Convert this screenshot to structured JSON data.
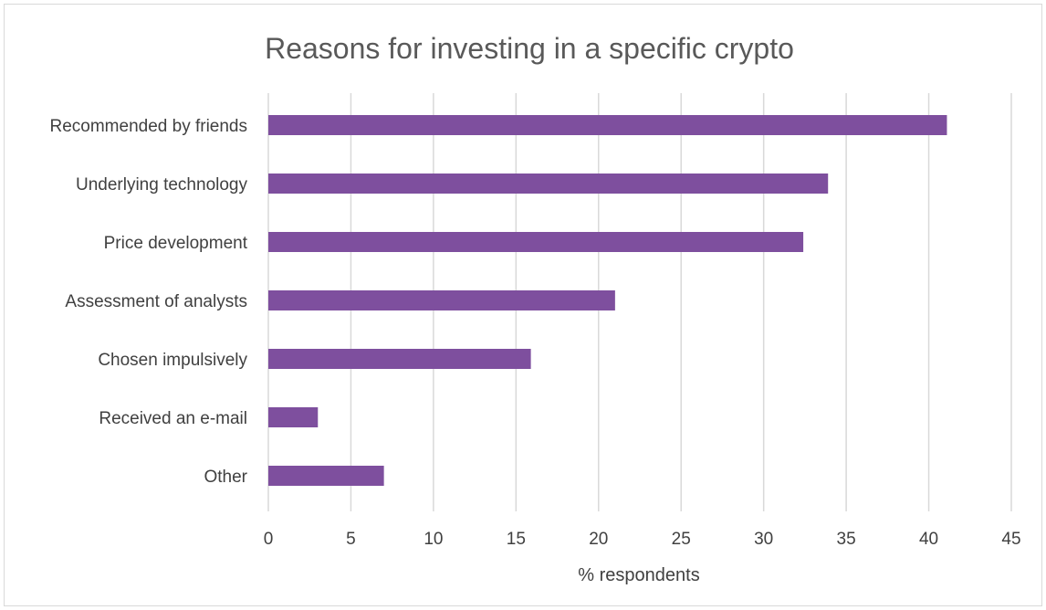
{
  "chart_data": {
    "type": "bar",
    "orientation": "horizontal",
    "title": "Reasons for investing in a specific crypto",
    "categories": [
      "Recommended by friends",
      "Underlying technology",
      "Price development",
      "Assessment of analysts",
      "Chosen impulsively",
      "Received an e-mail",
      "Other"
    ],
    "values": [
      41.1,
      33.9,
      32.4,
      21.0,
      15.9,
      3.0,
      7.0
    ],
    "xlabel": "% respondents",
    "ylabel": "",
    "xlim": [
      0,
      45
    ],
    "xticks": [
      0,
      5,
      10,
      15,
      20,
      25,
      30,
      35,
      40,
      45
    ],
    "grid": "vertical",
    "legend": "none",
    "bar_color": "#7e4f9e"
  }
}
